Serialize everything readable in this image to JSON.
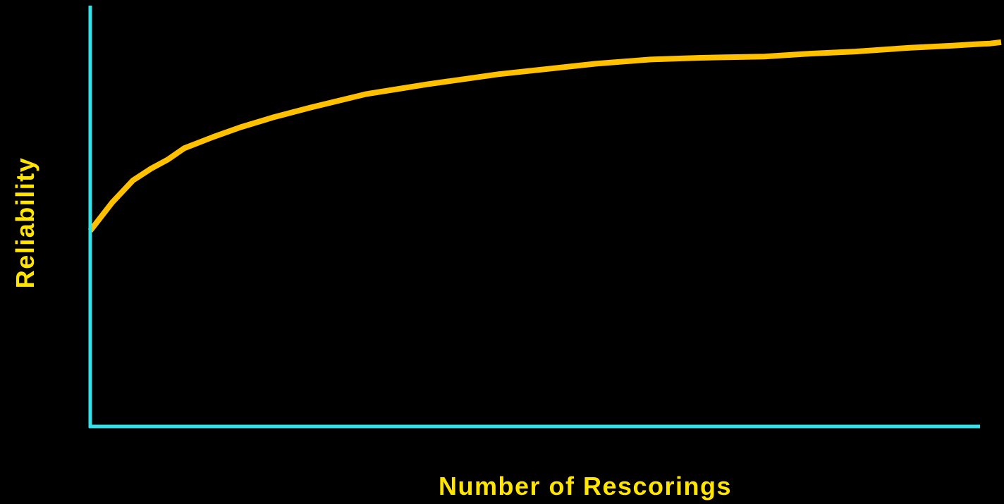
{
  "chart_data": {
    "type": "line",
    "title": "",
    "xlabel": "Number of Rescorings",
    "ylabel": "Reliability",
    "x_tick_labels_shown": false,
    "y_tick_labels_shown": false,
    "grid": false,
    "legend": "none",
    "xlim": [
      0,
      1
    ],
    "ylim": [
      0,
      1
    ],
    "series": [
      {
        "x": [
          0,
          0.024,
          0.047,
          0.067,
          0.085,
          0.103,
          0.135,
          0.165,
          0.2,
          0.242,
          0.303,
          0.37,
          0.448,
          0.555,
          0.615,
          0.67,
          0.74,
          0.79,
          0.84,
          0.9,
          0.947,
          0.97,
          0.988,
          1.0
        ],
        "y": [
          0.465,
          0.532,
          0.585,
          0.613,
          0.634,
          0.661,
          0.688,
          0.711,
          0.734,
          0.758,
          0.79,
          0.813,
          0.837,
          0.862,
          0.872,
          0.876,
          0.879,
          0.886,
          0.891,
          0.9,
          0.905,
          0.908,
          0.91,
          0.913
        ]
      }
    ],
    "colors": {
      "background": "#000000",
      "axes": "#33E3EC",
      "line": "#FFC000",
      "text": "#FFE500"
    }
  }
}
